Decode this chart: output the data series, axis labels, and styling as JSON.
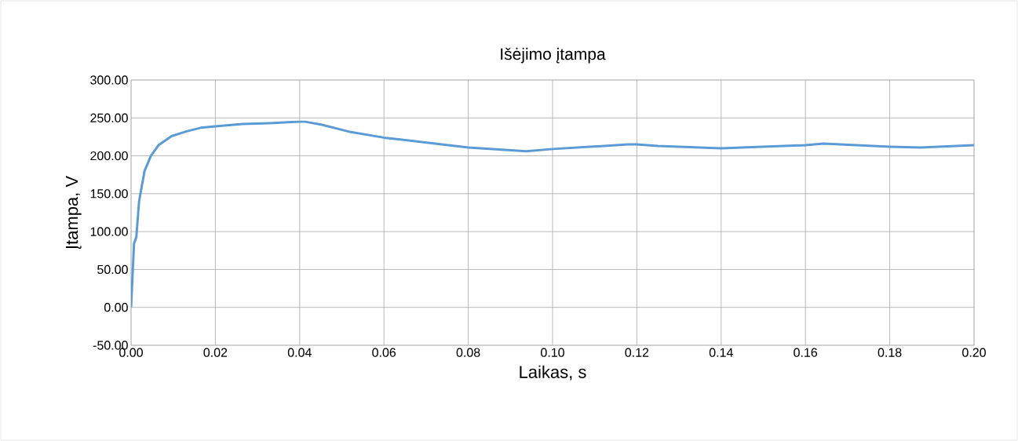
{
  "chart_data": {
    "type": "line",
    "title": "Išėjimo įtampa",
    "xlabel": "Laikas, s",
    "ylabel": "Įtampa, V",
    "x": [
      0,
      0.0007,
      0.00125,
      0.0019,
      0.0032,
      0.0047,
      0.0065,
      0.0096,
      0.013,
      0.0165,
      0.02,
      0.0265,
      0.0328,
      0.04,
      0.0413,
      0.0453,
      0.0516,
      0.06,
      0.08,
      0.0938,
      0.1,
      0.1179,
      0.12,
      0.125,
      0.14,
      0.16,
      0.1643,
      0.18,
      0.1873,
      0.2
    ],
    "series": [
      {
        "color": "#5b9bd5",
        "values": [
          0,
          84,
          93,
          140,
          180,
          200,
          214,
          226,
          232,
          237,
          239,
          242,
          243,
          245,
          245,
          241,
          232,
          224,
          211,
          206,
          209,
          215,
          215,
          213,
          210,
          214,
          216,
          212,
          211,
          214
        ]
      }
    ],
    "xlim": [
      0,
      0.2
    ],
    "ylim": [
      -50,
      300
    ],
    "xticks": [
      {
        "value": 0,
        "label": "0.00"
      },
      {
        "value": 0.02,
        "label": "0.02"
      },
      {
        "value": 0.04,
        "label": "0.04"
      },
      {
        "value": 0.06,
        "label": "0.06"
      },
      {
        "value": 0.08,
        "label": "0.08"
      },
      {
        "value": 0.1,
        "label": "0.10"
      },
      {
        "value": 0.12,
        "label": "0.12"
      },
      {
        "value": 0.14,
        "label": "0.14"
      },
      {
        "value": 0.16,
        "label": "0.16"
      },
      {
        "value": 0.18,
        "label": "0.18"
      },
      {
        "value": 0.2,
        "label": "0.20"
      }
    ],
    "yticks": [
      {
        "value": -50,
        "label": "-50.00"
      },
      {
        "value": 0,
        "label": "0.00"
      },
      {
        "value": 50,
        "label": "50.00"
      },
      {
        "value": 100,
        "label": "100.00"
      },
      {
        "value": 150,
        "label": "150.00"
      },
      {
        "value": 200,
        "label": "200.00"
      },
      {
        "value": 250,
        "label": "250.00"
      },
      {
        "value": 300,
        "label": "300.00"
      }
    ],
    "grid": true,
    "marker": "none",
    "line_style": "solid"
  }
}
